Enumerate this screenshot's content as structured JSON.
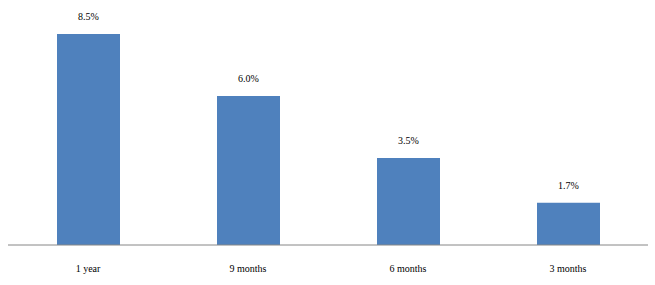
{
  "chart_data": {
    "type": "bar",
    "categories": [
      "1 year",
      "9 months",
      "6 months",
      "3 months"
    ],
    "values": [
      8.5,
      6.0,
      3.5,
      1.7
    ],
    "value_labels": [
      "8.5%",
      "6.0%",
      "3.5%",
      "1.7%"
    ],
    "color": "#4f81bd",
    "data_labels": true,
    "tick_labels": "x"
  }
}
